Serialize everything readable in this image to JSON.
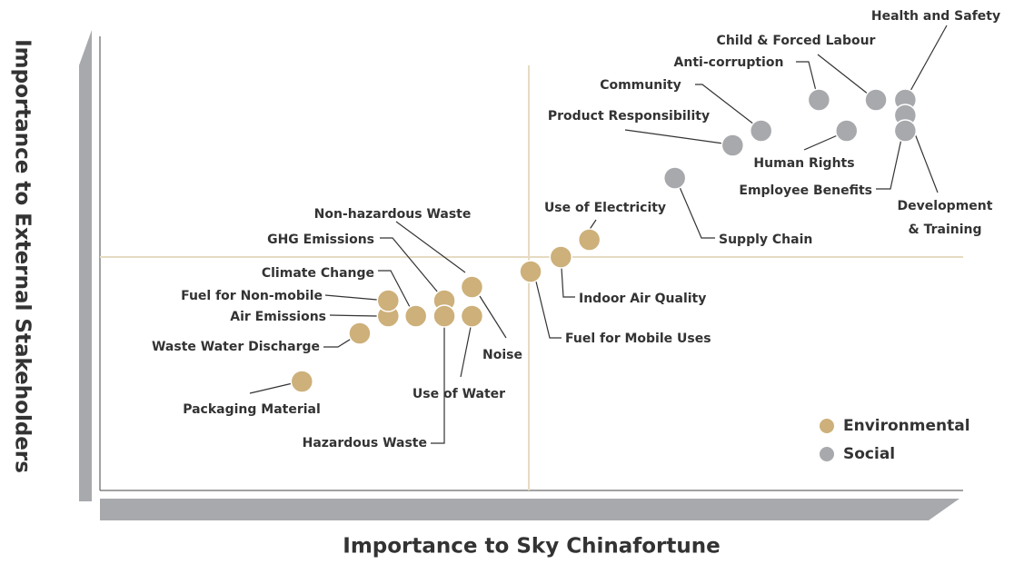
{
  "chart_data": {
    "type": "scatter",
    "x_label": "Importance to Sky Chinafortune",
    "y_label": "Importance to External Stakeholders",
    "xlim": [
      0,
      100
    ],
    "ylim": [
      0,
      100
    ],
    "legend": "lower right",
    "series": [
      {
        "name": "Environmental",
        "color": "#cdb07a",
        "labels": [
          "Packaging Material",
          "Waste Water Discharge",
          "Air Emissions",
          "Fuel for Non-mobile",
          "Climate Change",
          "GHG Emissions",
          "Hazardous Waste",
          "Use of Water",
          "Non-hazardous Waste",
          "Noise",
          "Fuel for Mobile Uses",
          "Indoor Air Quality",
          "Use of Electricity"
        ],
        "x": [
          23.4,
          30.1,
          33.4,
          33.4,
          36.6,
          39.9,
          39.9,
          43.1,
          43.1,
          43.1,
          49.9,
          53.4,
          56.7
        ],
        "y": [
          24.0,
          34.6,
          38.4,
          41.8,
          38.4,
          41.8,
          38.4,
          38.4,
          44.8,
          44.8,
          48.2,
          51.4,
          55.2
        ]
      },
      {
        "name": "Social",
        "color": "#a7a9ac",
        "labels": [
          "Supply Chain",
          "Product Responsibility",
          "Community",
          "Human Rights",
          "Anti-corruption",
          "Child & Forced Labour",
          "Health and Safety",
          "Development & Training",
          "Employee Benefits"
        ],
        "x": [
          66.6,
          73.3,
          76.6,
          86.5,
          83.3,
          89.9,
          93.3,
          93.3,
          93.3
        ],
        "y": [
          68.8,
          76.0,
          79.2,
          79.2,
          86.0,
          86.0,
          86.0,
          82.6,
          79.2
        ]
      }
    ]
  }
}
